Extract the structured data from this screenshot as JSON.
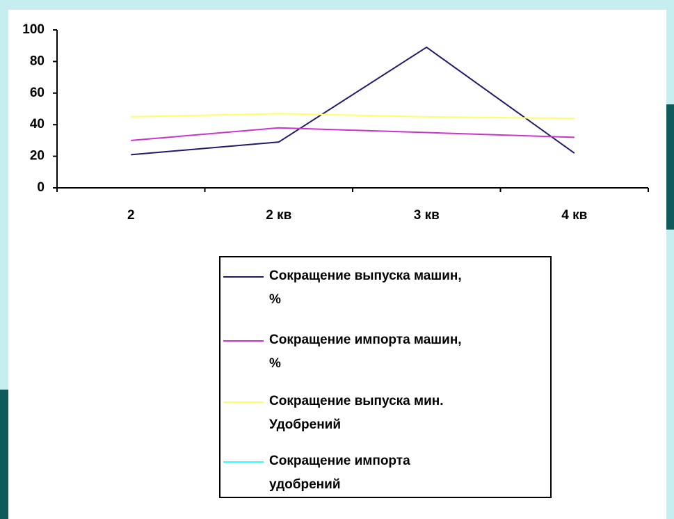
{
  "chart_data": {
    "type": "line",
    "categories": [
      "2",
      "2 кв",
      "3 кв",
      "4 кв"
    ],
    "series": [
      {
        "name": "Сокращение выпуска машин,\n%",
        "color": "#1f1a6b",
        "values": [
          21,
          29,
          89,
          22
        ]
      },
      {
        "name": "Сокращение импорта машин,\n%",
        "color": "#cc33cc",
        "values": [
          30,
          38,
          35,
          32
        ]
      },
      {
        "name": "Сокращение выпуска мин.\nУдобрений",
        "color": "#ffff66",
        "values": [
          45,
          47,
          45,
          44
        ]
      },
      {
        "name": "Сокращение импорта\nудобрений",
        "color": "#33ffff",
        "values": [
          null,
          null,
          null,
          null
        ]
      }
    ],
    "ylim": [
      0,
      100
    ],
    "yticks": [
      0,
      20,
      40,
      60,
      80,
      100
    ],
    "legend": "bottom"
  }
}
